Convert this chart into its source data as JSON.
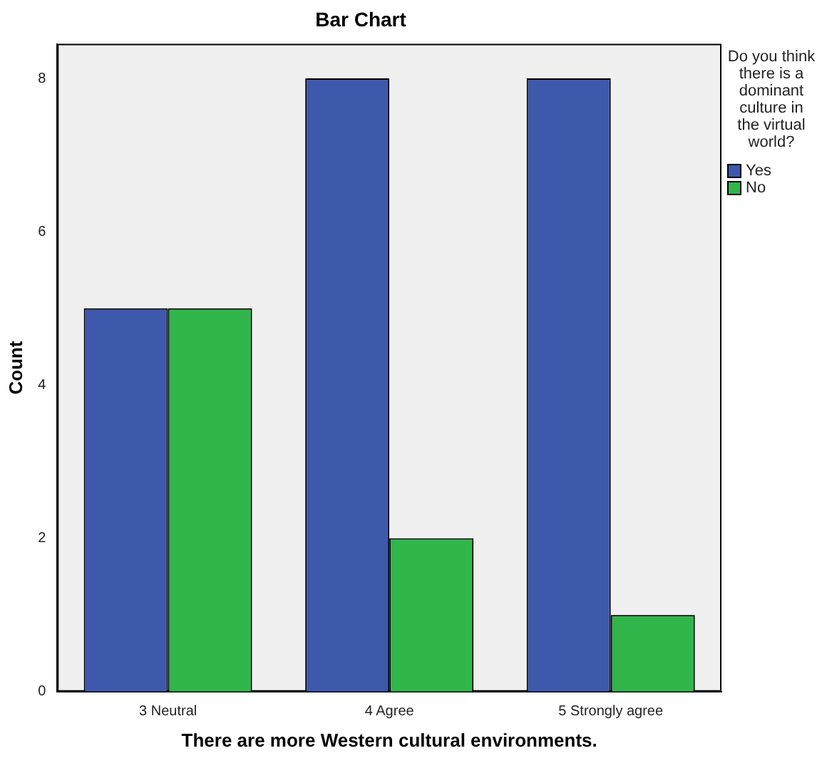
{
  "chart_data": {
    "type": "bar",
    "title": "Bar Chart",
    "xlabel": "There are more Western cultural environments.",
    "ylabel": "Count",
    "legend_title": "Do you think there is a dominant culture in the virtual world?",
    "categories": [
      "3 Neutral",
      "4 Agree",
      "5 Strongly agree"
    ],
    "series": [
      {
        "name": "Yes",
        "color": "#3e58ac",
        "values": [
          5,
          8,
          8
        ]
      },
      {
        "name": "No",
        "color": "#30b64a",
        "values": [
          5,
          2,
          1
        ]
      }
    ],
    "ylim": [
      0,
      8.45
    ],
    "yticks": [
      0,
      2,
      4,
      6,
      8
    ],
    "grid": false,
    "legend": "right"
  }
}
